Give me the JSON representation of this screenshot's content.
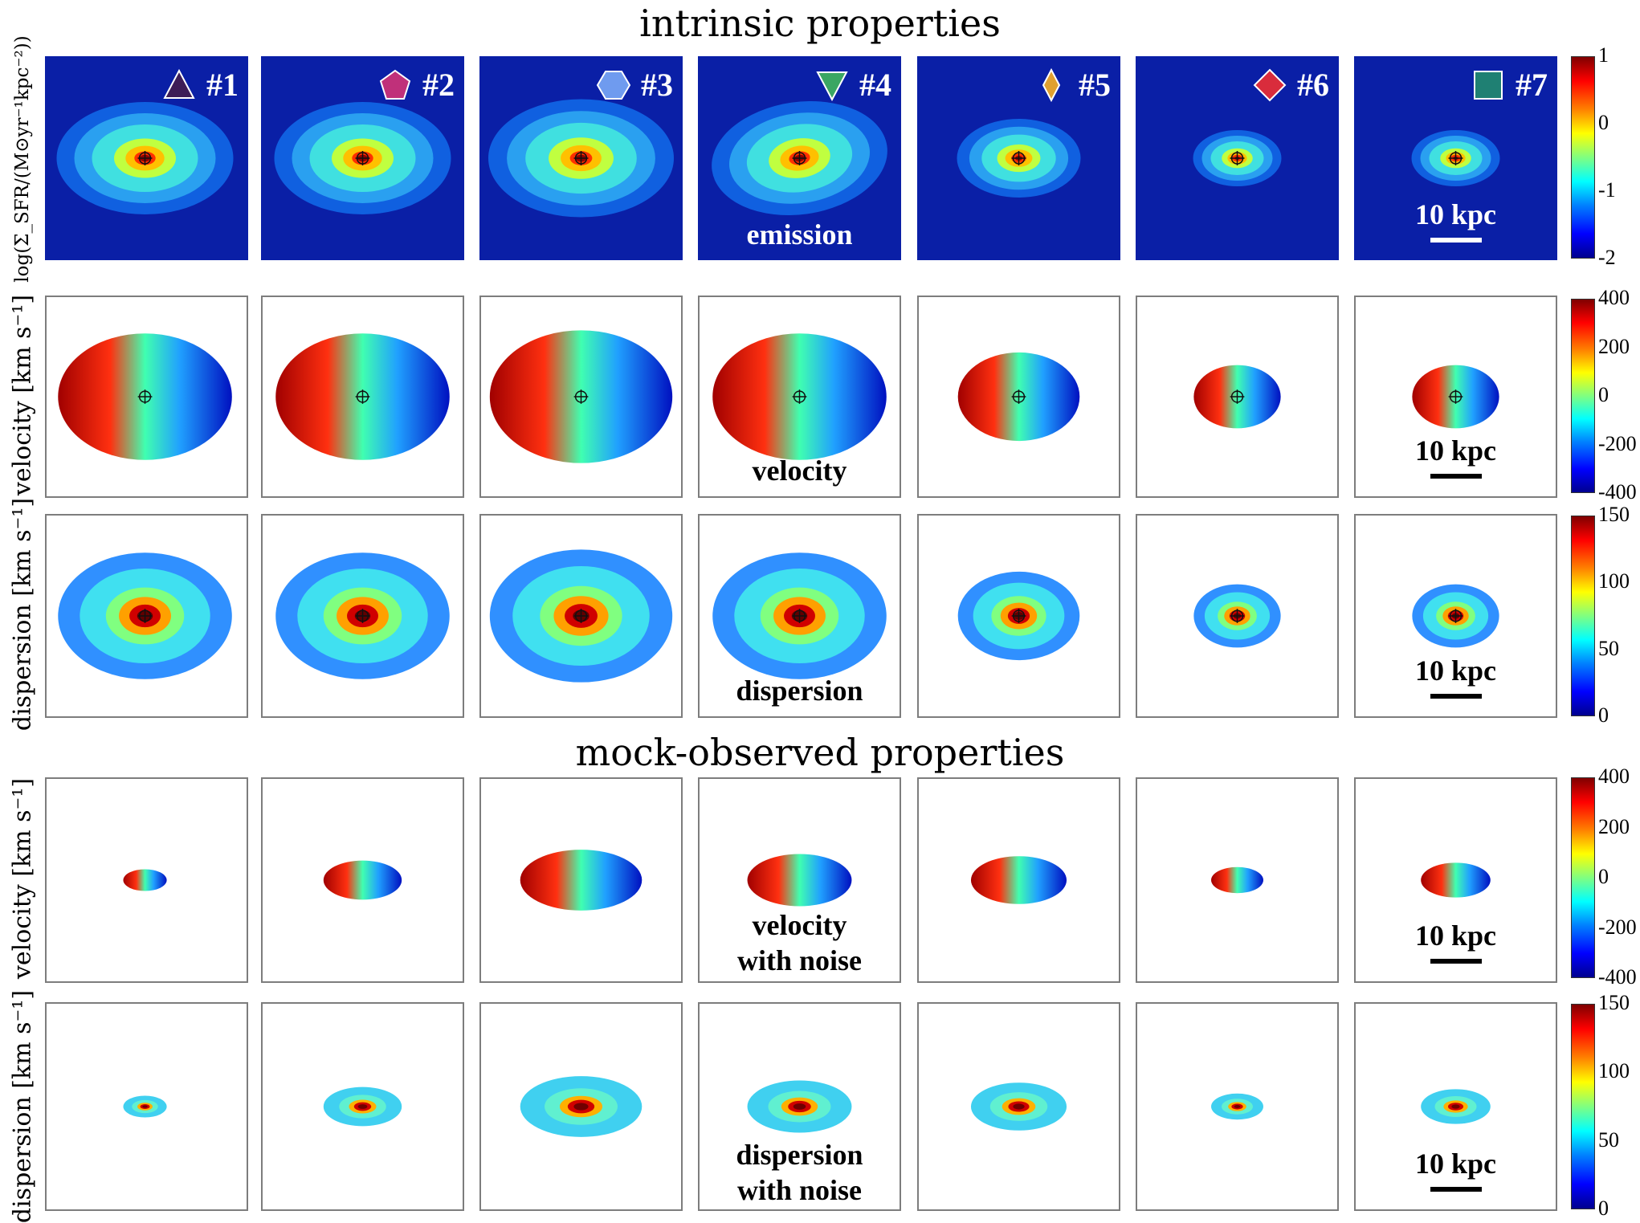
{
  "titles": {
    "intrinsic": "intrinsic properties",
    "mock": "mock-observed properties"
  },
  "row_labels": {
    "sfr": "log(Σ_SFR/(M⊙yr⁻¹kpc⁻²))",
    "velocity": "velocity [km s⁻¹]",
    "dispersion": "dispersion [km s⁻¹]"
  },
  "galaxies": [
    {
      "id": "#1",
      "marker": "triangle-up",
      "color": "#3d1d57"
    },
    {
      "id": "#2",
      "marker": "pentagon",
      "color": "#c0307a"
    },
    {
      "id": "#3",
      "marker": "hexagon",
      "color": "#6f9bef"
    },
    {
      "id": "#4",
      "marker": "triangle-down",
      "color": "#3aa663"
    },
    {
      "id": "#5",
      "marker": "thin-diamond",
      "color": "#e0a030"
    },
    {
      "id": "#6",
      "marker": "diamond",
      "color": "#d92c3c"
    },
    {
      "id": "#7",
      "marker": "square",
      "color": "#1f8073"
    }
  ],
  "panel_labels": {
    "emission": "emission",
    "velocity": "velocity",
    "dispersion": "dispersion",
    "velocity_noise_1": "velocity",
    "velocity_noise_2": "with noise",
    "dispersion_noise_1": "dispersion",
    "dispersion_noise_2": "with noise"
  },
  "scale_bar": "10 kpc",
  "colorbars": {
    "sfr": [
      "1",
      "0",
      "-1",
      "-2"
    ],
    "velocity": [
      "400",
      "200",
      "0",
      "-200",
      "-400"
    ],
    "dispersion": [
      "150",
      "100",
      "50",
      "0"
    ],
    "velocity_mock": [
      "400",
      "200",
      "0",
      "-200",
      "-400"
    ],
    "dispersion_mock": [
      "150",
      "100",
      "50",
      "0"
    ]
  },
  "colors": {
    "background_map": "#0a1fa6",
    "frame": "#7d7d7d"
  }
}
